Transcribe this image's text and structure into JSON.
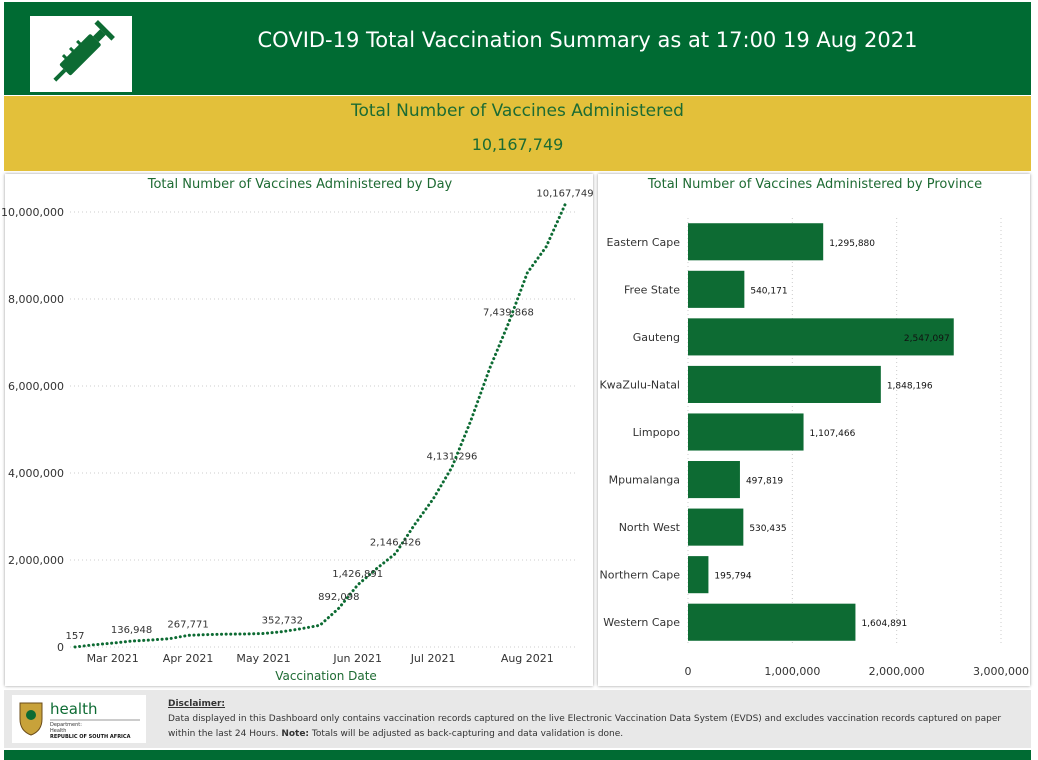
{
  "header": {
    "title": "COVID-19 Total Vaccination Summary as at 17:00 19 Aug 2021"
  },
  "banner": {
    "title": "Total Number of Vaccines Administered",
    "value": "10,167,749"
  },
  "chart_data": [
    {
      "type": "line",
      "title": "Total Number of Vaccines Administered by Day",
      "x_label": "Vaccination Date",
      "categories": [
        null,
        null,
        "Mar 2021",
        null,
        null,
        null,
        "Apr 2021",
        null,
        null,
        null,
        "May 2021",
        null,
        null,
        null,
        null,
        "Jun 2021",
        null,
        null,
        null,
        "Jul 2021",
        null,
        null,
        null,
        null,
        "Aug 2021",
        null,
        null
      ],
      "values": [
        157,
        50000,
        90000,
        136948,
        160000,
        190000,
        267771,
        285000,
        295000,
        300000,
        310000,
        352732,
        420000,
        500000,
        892098,
        1426891,
        1800000,
        2146426,
        2800000,
        3400000,
        4131296,
        5200000,
        6400000,
        7439868,
        8600000,
        9200000,
        10167749
      ],
      "value_labels": [
        "157",
        null,
        null,
        "136,948",
        null,
        null,
        "267,771",
        null,
        null,
        null,
        null,
        "352,732",
        null,
        null,
        "892,098",
        "1,426,891",
        null,
        "2,146,426",
        null,
        null,
        "4,131,296",
        null,
        null,
        "7,439,868",
        null,
        null,
        "10,167,749"
      ],
      "color": "#0d6b33",
      "ylim": [
        0,
        10200000
      ],
      "yticks": [
        0,
        {
          "value": 2000000,
          "label": "2,000,000"
        },
        {
          "value": 4000000,
          "label": "4,000,000"
        },
        {
          "value": 6000000,
          "label": "6,000,000"
        },
        {
          "value": 8000000,
          "label": "8,000,000"
        },
        {
          "value": 10000000,
          "label": "10,000,000"
        }
      ],
      "grid": true
    },
    {
      "type": "bar",
      "orientation": "horizontal",
      "title": "Total Number of Vaccines Administered by Province",
      "categories": [
        "Eastern Cape",
        "Free State",
        "Gauteng",
        "KwaZulu-Natal",
        "Limpopo",
        "Mpumalanga",
        "North West",
        "Northern Cape",
        "Western Cape"
      ],
      "values": [
        1295880,
        540171,
        2547097,
        1848196,
        1107466,
        497819,
        530435,
        195794,
        1604891
      ],
      "value_labels": [
        "1,295,880",
        "540,171",
        "2,547,097",
        "1,848,196",
        "1,107,466",
        "497,819",
        "530,435",
        "195,794",
        "1,604,891"
      ],
      "color": "#0d6b33",
      "xlim": [
        0,
        3000000
      ],
      "xticks": [
        0,
        {
          "value": 1000000,
          "label": "1,000,000"
        },
        {
          "value": 2000000,
          "label": "2,000,000"
        },
        {
          "value": 3000000,
          "label": "3,000,000"
        }
      ],
      "grid": true
    }
  ],
  "footer": {
    "logo": {
      "name": "health",
      "line1": "Department:",
      "line2": "Health",
      "line3": "REPUBLIC OF SOUTH AFRICA"
    },
    "disclaimer": {
      "title": "Disclaimer:",
      "text": "Data displayed in this Dashboard only contains vaccination records captured on the live Electronic Vaccination Data System (EVDS) and excludes vaccination records captured on paper within the last 24 Hours.",
      "note_label": "Note:",
      "note": "Totals will be adjusted as back-capturing and data validation is done."
    }
  }
}
